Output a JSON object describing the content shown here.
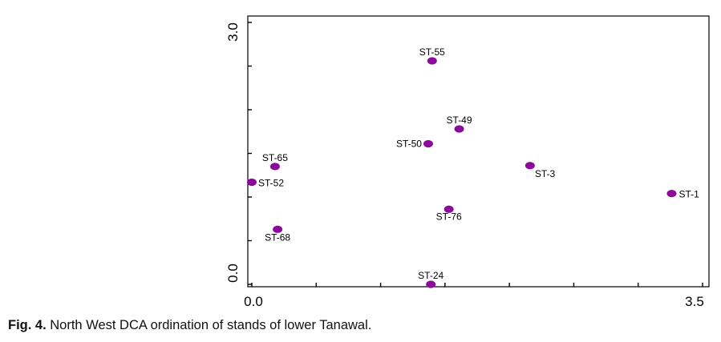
{
  "chart_data": {
    "type": "scatter",
    "title": "",
    "xlabel": "",
    "ylabel": "",
    "xlim": [
      0.0,
      3.5
    ],
    "ylim": [
      0.0,
      3.0
    ],
    "x_tick_labels": [
      "0.0",
      "3.5"
    ],
    "y_tick_labels": [
      "0.0",
      "3.0"
    ],
    "grid": false,
    "marker_color": "#8B0A9B",
    "points": [
      {
        "label": "ST-55",
        "x": 1.4,
        "y": 2.56
      },
      {
        "label": "ST-49",
        "x": 1.61,
        "y": 1.78
      },
      {
        "label": "ST-50",
        "x": 1.37,
        "y": 1.61
      },
      {
        "label": "ST-65",
        "x": 0.18,
        "y": 1.35
      },
      {
        "label": "ST-52",
        "x": 0.0,
        "y": 1.17
      },
      {
        "label": "ST-3",
        "x": 2.16,
        "y": 1.36
      },
      {
        "label": "ST-1",
        "x": 3.26,
        "y": 1.04
      },
      {
        "label": "ST-76",
        "x": 1.53,
        "y": 0.86
      },
      {
        "label": "ST-68",
        "x": 0.2,
        "y": 0.63
      },
      {
        "label": "ST-24",
        "x": 1.39,
        "y": 0.0
      }
    ]
  },
  "caption": {
    "label": "Fig. 4.",
    "text": " North West DCA ordination of stands of lower Tanawal."
  }
}
